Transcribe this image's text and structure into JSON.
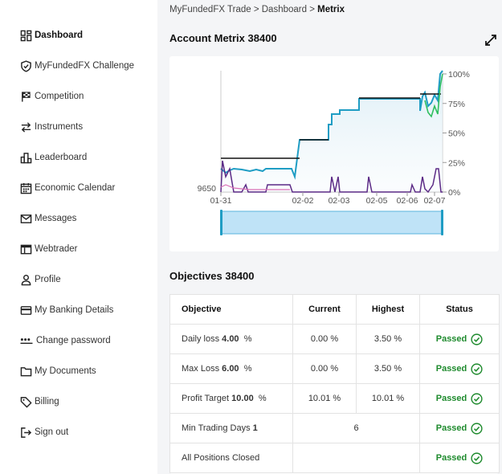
{
  "sidebar": {
    "items": [
      {
        "label": "Dashboard",
        "icon": "dashboard-icon",
        "active": true
      },
      {
        "label": "MyFundedFX Challenge",
        "icon": "shield-check-icon"
      },
      {
        "label": "Competition",
        "icon": "checkered-flag-icon"
      },
      {
        "label": "Instruments",
        "icon": "swap-arrows-icon"
      },
      {
        "label": "Leaderboard",
        "icon": "leaderboard-icon"
      },
      {
        "label": "Economic Calendar",
        "icon": "calendar-icon"
      },
      {
        "label": "Messages",
        "icon": "envelope-icon"
      },
      {
        "label": "Webtrader",
        "icon": "browser-window-icon"
      },
      {
        "label": "Profile",
        "icon": "person-icon"
      },
      {
        "label": "My Banking Details",
        "icon": "credit-card-icon"
      },
      {
        "label": "Change password",
        "icon": "password-dots-icon"
      },
      {
        "label": "My Documents",
        "icon": "folder-icon"
      },
      {
        "label": "Billing",
        "icon": "tag-icon"
      },
      {
        "label": "Sign out",
        "icon": "sign-out-icon"
      }
    ]
  },
  "breadcrumb": {
    "part1": "MyFundedFX Trade",
    "sep1": " > ",
    "part2": "Dashboard",
    "sep2": " > ",
    "current": "Metrix"
  },
  "metrix": {
    "title": "Account Metrix 38400"
  },
  "chart_data": {
    "type": "line",
    "x_ticks": [
      "01-31",
      "02-02",
      "02-03",
      "02-05",
      "02-06",
      "02-07"
    ],
    "y_left_tick": "9650",
    "y_right_ticks": [
      "100%",
      "75%",
      "50%",
      "25%",
      "0%"
    ],
    "y_right_values": [
      100,
      75,
      50,
      25,
      0
    ],
    "colors": {
      "balance": "#1f9dc4",
      "black_line": "#111111",
      "purple": "#5b2a86",
      "green": "#2fbf5f",
      "pink": "#d96fb6",
      "navigator": "#bfe3f7"
    }
  },
  "objectives": {
    "title": "Objectives 38400",
    "headers": {
      "objective": "Objective",
      "current": "Current",
      "highest": "Highest",
      "status": "Status"
    },
    "rows": [
      {
        "label": "Daily loss",
        "value": "4.00",
        "unit": "%",
        "current": "0.00 %",
        "highest": "3.50 %",
        "status": "Passed"
      },
      {
        "label": "Max Loss",
        "value": "6.00",
        "unit": "%",
        "current": "0.00 %",
        "highest": "3.50 %",
        "status": "Passed"
      },
      {
        "label": "Profit Target",
        "value": "10.00",
        "unit": "%",
        "current": "10.01 %",
        "highest": "10.01 %",
        "status": "Passed"
      },
      {
        "label": "Min Trading Days",
        "value": "1",
        "unit": "",
        "merged": "6",
        "status": "Passed"
      },
      {
        "label": "All Positions Closed",
        "value": "",
        "unit": "",
        "merged": "",
        "status": "Passed"
      }
    ]
  }
}
